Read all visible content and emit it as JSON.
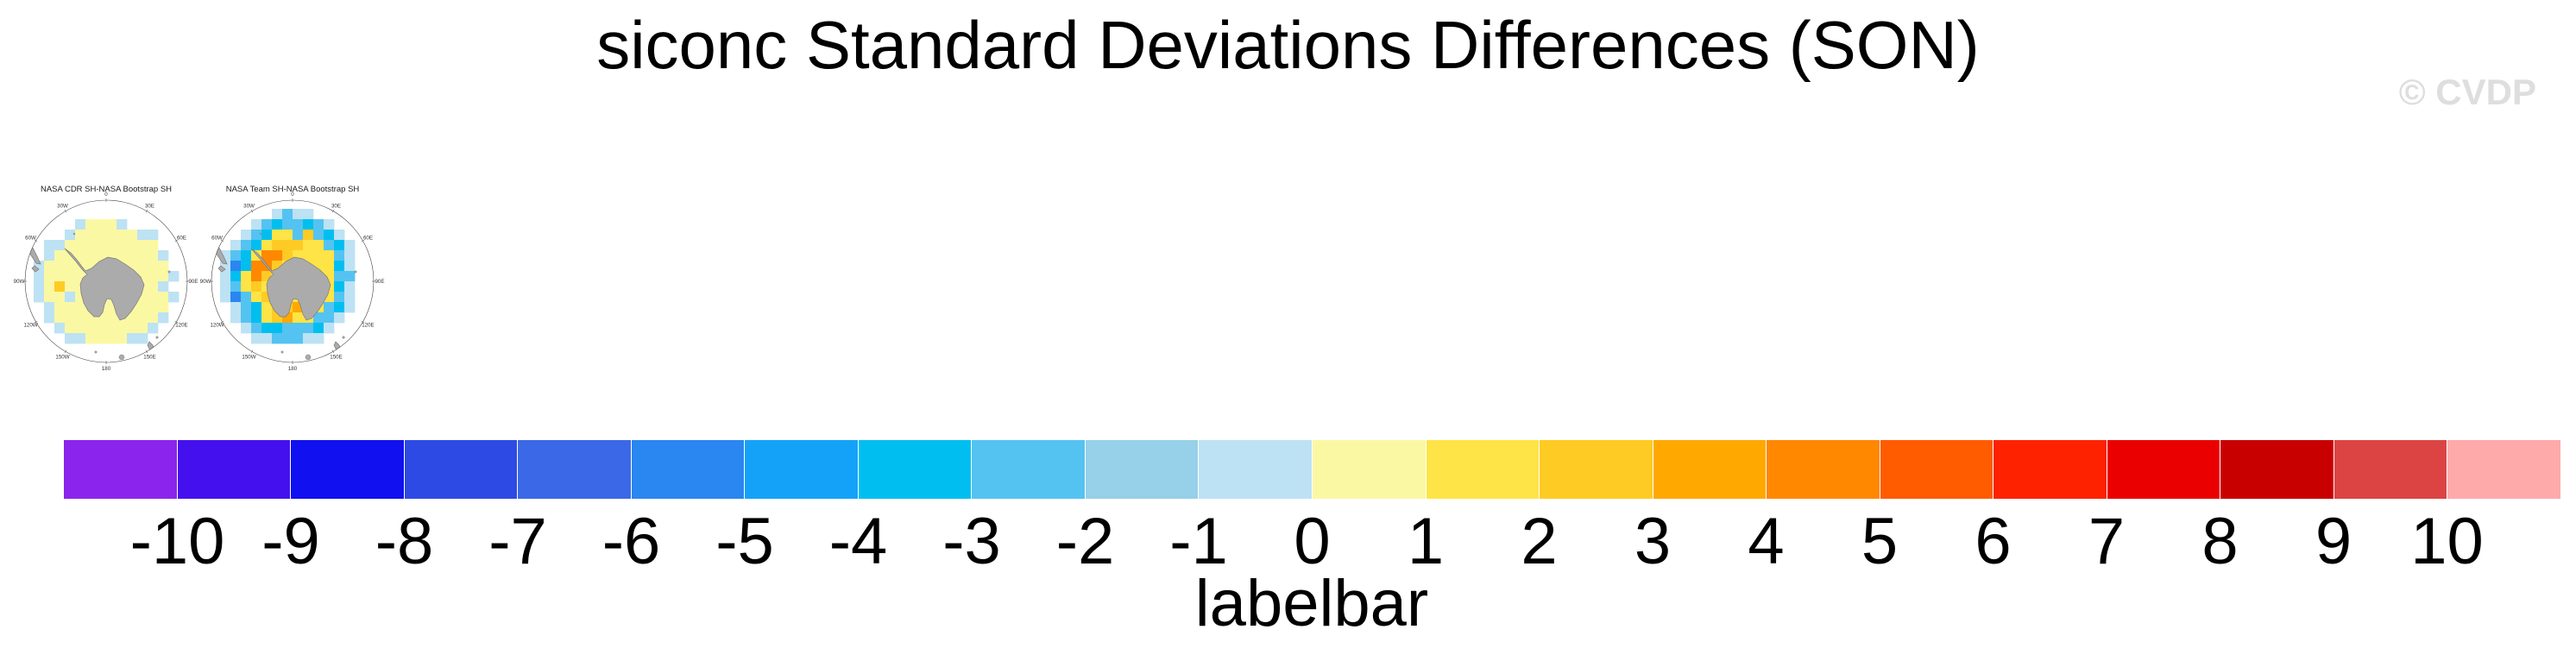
{
  "header": {
    "title": "siconc Standard Deviations Differences (SON)",
    "watermark": "© CVDP",
    "watermark_color": "#DEDEDE"
  },
  "map_style": {
    "land_color": "#ABABAB",
    "coast_color": "#7A7A7A",
    "circle_color": "#444444",
    "label_color": "#333333",
    "title_color": "#1A1A1A"
  },
  "cell_colors": {
    "Y": "#FBF8A4",
    "y": "#FEE446",
    "g": "#FECB24",
    "o": "#FFA800",
    "O": "#FF8800",
    "b": "#BDE2F3",
    "S": "#97D0E9",
    "s": "#54C3F1",
    "c": "#00BFF0",
    "d": "#2A86F0",
    "D": "#3B68E6"
  },
  "maps": [
    {
      "title": "NASA CDR SH-NASA Bootstrap SH",
      "lon_labels": [
        "0",
        "30E",
        "60E",
        "90E",
        "120E",
        "150E",
        "180",
        "150W",
        "120W",
        "90W",
        "60W",
        "30W"
      ],
      "grid": [
        "................",
        "................",
        ".....bYYYb......",
        "....bYYYYYYbb...",
        "..bbYYYYYYYYY...",
        "..bYYYYYYYYYYb..",
        ".bYYYYYYYYYYYY..",
        ".bYYYYYYYYYYYYb.",
        ".bYgYYYYYYYYYb..",
        ".bYYbYYYYYYYYYb.",
        "..bYYYYYYYYYYY..",
        "..bYYYYYYYYYYb..",
        "...bYYYYYYYYb...",
        "....bbYYYYbb....",
        "................",
        "................"
      ]
    },
    {
      "title": "NASA Team SH-NASA Bootstrap SH",
      "lon_labels": [
        "0",
        "30E",
        "60E",
        "90E",
        "120E",
        "150E",
        "180",
        "150W",
        "120W",
        "90W",
        "60W",
        "30W"
      ],
      "grid": [
        "................",
        "......bsbb......",
        "....bscsscsb....",
        "...bscyysgscb...",
        "..bscygggyyscb..",
        ".bscyOOgyyyysb..",
        ".bdcOOgyyyyycb..",
        ".bcyOgyyyyyyss..",
        ".bsygyyyyyyycb..",
        ".bdsygyyyyyysb..",
        "..bscyggoyyscb..",
        "..bscygoyyssb...",
        "...bsccssscb....",
        "....bbsssbb.....",
        "................",
        "................"
      ]
    }
  ],
  "labelbar": {
    "title": "labelbar",
    "tick_labels": [
      "-10",
      "-9",
      "-8",
      "-7",
      "-6",
      "-5",
      "-4",
      "-3",
      "-2",
      "-1",
      "0",
      "1",
      "2",
      "3",
      "4",
      "5",
      "6",
      "7",
      "8",
      "9",
      "10"
    ],
    "colors": [
      "#8B24EC",
      "#4411EE",
      "#1010F0",
      "#2E4AE4",
      "#3B68E6",
      "#2A86F0",
      "#14A2F8",
      "#00BFF0",
      "#54C3F1",
      "#97D0E9",
      "#BDE2F3",
      "#FBF8A4",
      "#FEE446",
      "#FECB24",
      "#FFA800",
      "#FF8800",
      "#FF5C00",
      "#FF2200",
      "#EA0000",
      "#C80000",
      "#DC4444",
      "#FFAAAA"
    ]
  },
  "chart_data": [
    {
      "type": "heatmap",
      "subtype": "south_polar_stereographic_map",
      "title": "NASA CDR SH-NASA Bootstrap SH",
      "longitude_ticks": [
        "0",
        "30E",
        "60E",
        "90E",
        "120E",
        "150E",
        "180",
        "150W",
        "120W",
        "90W",
        "60W",
        "30W"
      ],
      "units_shown_range": [
        -1,
        1
      ],
      "summary": "Sea-ice concentration standard-deviation difference around Antarctica: mostly 0 to 1 (pale yellow) across the sea-ice zone with scattered -1 to 0 (pale blue) cells along the outer ice edge and near the coast."
    },
    {
      "type": "heatmap",
      "subtype": "south_polar_stereographic_map",
      "title": "NASA Team SH-NASA Bootstrap SH",
      "longitude_ticks": [
        "0",
        "30E",
        "60E",
        "90E",
        "120E",
        "150E",
        "180",
        "150W",
        "120W",
        "90W",
        "60W",
        "30W"
      ],
      "units_shown_range": [
        -5,
        5
      ],
      "summary": "Ring of negative differences (-1 to -5, blues) along the outer sea-ice edge encircling positive differences (1 to 5, yellow-gold-orange) closer to the continent, with strongest positive values northwest of the Antarctic Peninsula."
    },
    {
      "type": "colorbar",
      "label": "labelbar",
      "tick_values": [
        -10,
        -9,
        -8,
        -7,
        -6,
        -5,
        -4,
        -3,
        -2,
        -1,
        0,
        1,
        2,
        3,
        4,
        5,
        6,
        7,
        8,
        9,
        10
      ],
      "colors": [
        "#8B24EC",
        "#4411EE",
        "#1010F0",
        "#2E4AE4",
        "#3B68E6",
        "#2A86F0",
        "#14A2F8",
        "#00BFF0",
        "#54C3F1",
        "#97D0E9",
        "#BDE2F3",
        "#FBF8A4",
        "#FEE446",
        "#FECB24",
        "#FFA800",
        "#FF8800",
        "#FF5C00",
        "#FF2200",
        "#EA0000",
        "#C80000",
        "#DC4444",
        "#FFAAAA"
      ],
      "orientation": "horizontal",
      "boxes": 22,
      "note": "outer two boxes are below -10 / above 10"
    }
  ]
}
